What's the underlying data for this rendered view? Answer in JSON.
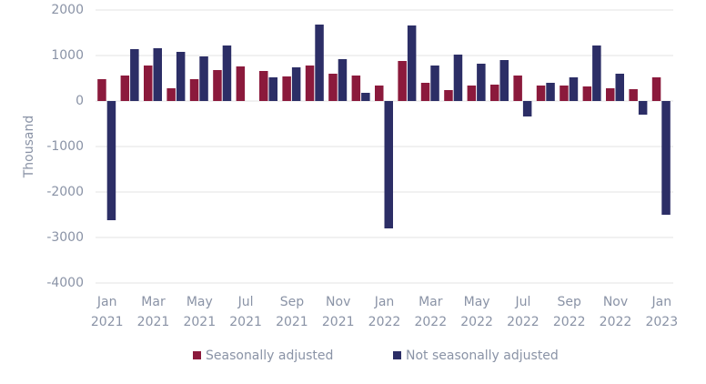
{
  "chart_data": {
    "type": "bar",
    "y_label": "Thousand",
    "categories": [
      "Jan 2021",
      null,
      "Mar 2021",
      null,
      "May 2021",
      null,
      "Jul 2021",
      null,
      "Sep 2021",
      null,
      "Nov 2021",
      null,
      "Jan 2022",
      null,
      "Mar 2022",
      null,
      "May 2022",
      null,
      "Jul 2022",
      null,
      "Sep 2022",
      null,
      "Nov 2022",
      null,
      "Jan 2023"
    ],
    "series": [
      {
        "name": "Seasonally adjusted",
        "color": "#8b1a3c",
        "values": [
          480,
          560,
          780,
          280,
          480,
          680,
          760,
          660,
          540,
          780,
          600,
          560,
          340,
          880,
          400,
          240,
          340,
          360,
          560,
          340,
          340,
          320,
          280,
          260,
          520
        ]
      },
      {
        "name": "Not seasonally adjusted",
        "color": "#2c2e66",
        "values": [
          -2620,
          1140,
          1160,
          1080,
          980,
          1220,
          0,
          520,
          740,
          1680,
          920,
          180,
          -2800,
          1660,
          780,
          1020,
          820,
          900,
          -340,
          400,
          520,
          1220,
          600,
          -300,
          -2500
        ]
      }
    ],
    "ylim": [
      -4000,
      2000
    ],
    "yticks": [
      -4000,
      -3000,
      -2000,
      -1000,
      0,
      1000,
      2000
    ],
    "grid": true,
    "legend": "bottom"
  }
}
